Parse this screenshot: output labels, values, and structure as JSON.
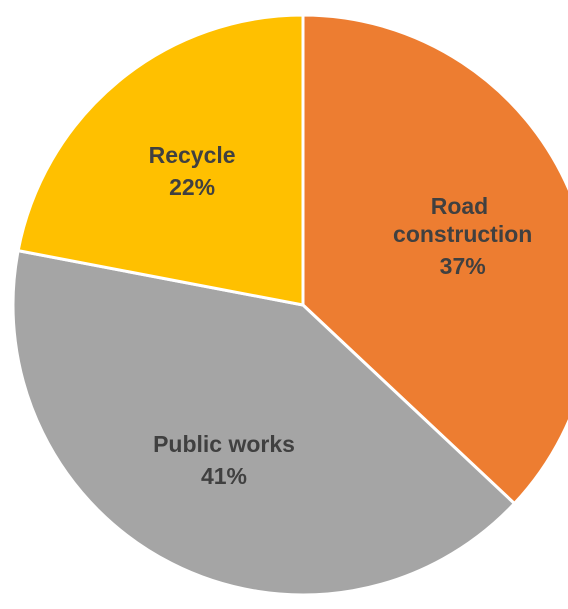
{
  "chart_data": {
    "type": "pie",
    "categories": [
      "Road construction",
      "Public works",
      "Recycle"
    ],
    "values": [
      37,
      41,
      22
    ],
    "value_labels": [
      "37%",
      "41%",
      "22%"
    ],
    "colors": [
      "#ed7d31",
      "#a5a5a5",
      "#ffc000"
    ]
  }
}
